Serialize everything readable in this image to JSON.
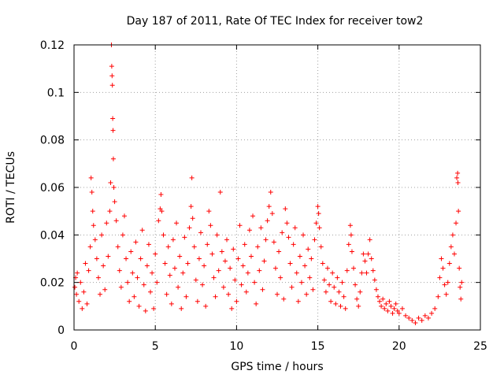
{
  "chart_data": {
    "type": "scatter",
    "title": "Day 187 of 2011, Rate Of TEC Index for receiver tow2",
    "xlabel": "GPS time / hours",
    "ylabel": "ROTI / TECUs",
    "xlim": [
      0,
      25
    ],
    "ylim": [
      0,
      0.12
    ],
    "x_ticks": [
      0,
      5,
      10,
      15,
      20,
      25
    ],
    "x_tick_labels": [
      "0",
      "5",
      "10",
      "15",
      "20",
      "25"
    ],
    "y_ticks": [
      0,
      0.02,
      0.04,
      0.06,
      0.08,
      0.1,
      0.12
    ],
    "y_tick_labels": [
      "0",
      "0.02",
      "0.04",
      "0.06",
      "0.08",
      "0.1",
      "0.12"
    ],
    "grid": true,
    "marker": "+",
    "color": "#ff0000",
    "series": [
      {
        "name": "ROTI",
        "points": [
          [
            0.05,
            0.018
          ],
          [
            0.1,
            0.022
          ],
          [
            0.15,
            0.015
          ],
          [
            0.2,
            0.024
          ],
          [
            0.3,
            0.012
          ],
          [
            0.4,
            0.02
          ],
          [
            0.5,
            0.009
          ],
          [
            0.6,
            0.016
          ],
          [
            0.7,
            0.028
          ],
          [
            0.8,
            0.011
          ],
          [
            0.9,
            0.025
          ],
          [
            1.0,
            0.035
          ],
          [
            1.05,
            0.064
          ],
          [
            1.1,
            0.058
          ],
          [
            1.15,
            0.05
          ],
          [
            1.2,
            0.044
          ],
          [
            1.3,
            0.038
          ],
          [
            1.4,
            0.03
          ],
          [
            1.5,
            0.022
          ],
          [
            1.6,
            0.015
          ],
          [
            1.7,
            0.04
          ],
          [
            1.8,
            0.027
          ],
          [
            1.9,
            0.017
          ],
          [
            2.0,
            0.045
          ],
          [
            2.1,
            0.031
          ],
          [
            2.2,
            0.05
          ],
          [
            2.25,
            0.062
          ],
          [
            2.3,
            0.12
          ],
          [
            2.32,
            0.111
          ],
          [
            2.34,
            0.107
          ],
          [
            2.36,
            0.103
          ],
          [
            2.38,
            0.089
          ],
          [
            2.4,
            0.084
          ],
          [
            2.42,
            0.072
          ],
          [
            2.45,
            0.06
          ],
          [
            2.5,
            0.054
          ],
          [
            2.6,
            0.046
          ],
          [
            2.7,
            0.035
          ],
          [
            2.8,
            0.025
          ],
          [
            2.9,
            0.018
          ],
          [
            3.0,
            0.04
          ],
          [
            3.1,
            0.048
          ],
          [
            3.2,
            0.03
          ],
          [
            3.3,
            0.02
          ],
          [
            3.4,
            0.012
          ],
          [
            3.5,
            0.033
          ],
          [
            3.6,
            0.024
          ],
          [
            3.7,
            0.014
          ],
          [
            3.8,
            0.037
          ],
          [
            3.9,
            0.022
          ],
          [
            4.0,
            0.01
          ],
          [
            4.1,
            0.03
          ],
          [
            4.2,
            0.042
          ],
          [
            4.3,
            0.019
          ],
          [
            4.4,
            0.008
          ],
          [
            4.5,
            0.027
          ],
          [
            4.6,
            0.036
          ],
          [
            4.7,
            0.016
          ],
          [
            4.8,
            0.024
          ],
          [
            4.9,
            0.009
          ],
          [
            5.0,
            0.032
          ],
          [
            5.1,
            0.02
          ],
          [
            5.2,
            0.046
          ],
          [
            5.3,
            0.051
          ],
          [
            5.35,
            0.057
          ],
          [
            5.4,
            0.05
          ],
          [
            5.5,
            0.04
          ],
          [
            5.6,
            0.028
          ],
          [
            5.7,
            0.015
          ],
          [
            5.8,
            0.035
          ],
          [
            5.9,
            0.023
          ],
          [
            6.0,
            0.011
          ],
          [
            6.1,
            0.038
          ],
          [
            6.2,
            0.026
          ],
          [
            6.3,
            0.045
          ],
          [
            6.4,
            0.018
          ],
          [
            6.5,
            0.031
          ],
          [
            6.6,
            0.009
          ],
          [
            6.7,
            0.024
          ],
          [
            6.8,
            0.039
          ],
          [
            6.9,
            0.014
          ],
          [
            7.0,
            0.028
          ],
          [
            7.1,
            0.043
          ],
          [
            7.2,
            0.052
          ],
          [
            7.25,
            0.064
          ],
          [
            7.3,
            0.047
          ],
          [
            7.4,
            0.035
          ],
          [
            7.5,
            0.021
          ],
          [
            7.6,
            0.012
          ],
          [
            7.7,
            0.03
          ],
          [
            7.8,
            0.041
          ],
          [
            7.9,
            0.019
          ],
          [
            8.0,
            0.027
          ],
          [
            8.1,
            0.01
          ],
          [
            8.2,
            0.036
          ],
          [
            8.3,
            0.05
          ],
          [
            8.4,
            0.044
          ],
          [
            8.5,
            0.032
          ],
          [
            8.6,
            0.022
          ],
          [
            8.7,
            0.014
          ],
          [
            8.8,
            0.04
          ],
          [
            8.9,
            0.025
          ],
          [
            9.0,
            0.058
          ],
          [
            9.1,
            0.033
          ],
          [
            9.2,
            0.018
          ],
          [
            9.3,
            0.029
          ],
          [
            9.4,
            0.038
          ],
          [
            9.5,
            0.015
          ],
          [
            9.6,
            0.026
          ],
          [
            9.7,
            0.009
          ],
          [
            9.8,
            0.034
          ],
          [
            9.9,
            0.021
          ],
          [
            10.0,
            0.012
          ],
          [
            10.1,
            0.03
          ],
          [
            10.2,
            0.044
          ],
          [
            10.3,
            0.019
          ],
          [
            10.4,
            0.027
          ],
          [
            10.5,
            0.036
          ],
          [
            10.6,
            0.016
          ],
          [
            10.7,
            0.024
          ],
          [
            10.8,
            0.042
          ],
          [
            10.9,
            0.031
          ],
          [
            11.0,
            0.048
          ],
          [
            11.1,
            0.02
          ],
          [
            11.2,
            0.011
          ],
          [
            11.3,
            0.035
          ],
          [
            11.4,
            0.025
          ],
          [
            11.5,
            0.043
          ],
          [
            11.6,
            0.017
          ],
          [
            11.7,
            0.029
          ],
          [
            11.8,
            0.038
          ],
          [
            11.9,
            0.046
          ],
          [
            12.0,
            0.052
          ],
          [
            12.1,
            0.058
          ],
          [
            12.2,
            0.049
          ],
          [
            12.3,
            0.037
          ],
          [
            12.4,
            0.026
          ],
          [
            12.5,
            0.015
          ],
          [
            12.6,
            0.033
          ],
          [
            12.7,
            0.022
          ],
          [
            12.8,
            0.041
          ],
          [
            12.9,
            0.013
          ],
          [
            13.0,
            0.051
          ],
          [
            13.1,
            0.045
          ],
          [
            13.2,
            0.039
          ],
          [
            13.3,
            0.028
          ],
          [
            13.4,
            0.018
          ],
          [
            13.5,
            0.036
          ],
          [
            13.6,
            0.043
          ],
          [
            13.7,
            0.024
          ],
          [
            13.8,
            0.012
          ],
          [
            13.9,
            0.031
          ],
          [
            14.0,
            0.02
          ],
          [
            14.1,
            0.04
          ],
          [
            14.2,
            0.027
          ],
          [
            14.3,
            0.015
          ],
          [
            14.4,
            0.034
          ],
          [
            14.5,
            0.022
          ],
          [
            14.6,
            0.03
          ],
          [
            14.7,
            0.017
          ],
          [
            14.8,
            0.038
          ],
          [
            14.9,
            0.045
          ],
          [
            15.0,
            0.052
          ],
          [
            15.05,
            0.049
          ],
          [
            15.1,
            0.043
          ],
          [
            15.2,
            0.035
          ],
          [
            15.3,
            0.028
          ],
          [
            15.4,
            0.021
          ],
          [
            15.5,
            0.016
          ],
          [
            15.6,
            0.026
          ],
          [
            15.7,
            0.019
          ],
          [
            15.8,
            0.012
          ],
          [
            15.9,
            0.024
          ],
          [
            16.0,
            0.018
          ],
          [
            16.1,
            0.011
          ],
          [
            16.2,
            0.022
          ],
          [
            16.3,
            0.016
          ],
          [
            16.4,
            0.01
          ],
          [
            16.5,
            0.02
          ],
          [
            16.6,
            0.014
          ],
          [
            16.7,
            0.009
          ],
          [
            16.8,
            0.025
          ],
          [
            16.9,
            0.036
          ],
          [
            17.0,
            0.044
          ],
          [
            17.05,
            0.04
          ],
          [
            17.1,
            0.033
          ],
          [
            17.2,
            0.026
          ],
          [
            17.3,
            0.019
          ],
          [
            17.4,
            0.013
          ],
          [
            17.5,
            0.01
          ],
          [
            17.6,
            0.016
          ],
          [
            17.7,
            0.024
          ],
          [
            17.8,
            0.032
          ],
          [
            17.9,
            0.029
          ],
          [
            18.0,
            0.024
          ],
          [
            18.1,
            0.032
          ],
          [
            18.2,
            0.038
          ],
          [
            18.3,
            0.03
          ],
          [
            18.4,
            0.025
          ],
          [
            18.5,
            0.021
          ],
          [
            18.6,
            0.017
          ],
          [
            18.7,
            0.014
          ],
          [
            18.8,
            0.012
          ],
          [
            18.9,
            0.01
          ],
          [
            19.0,
            0.013
          ],
          [
            19.1,
            0.009
          ],
          [
            19.2,
            0.011
          ],
          [
            19.3,
            0.008
          ],
          [
            19.4,
            0.012
          ],
          [
            19.5,
            0.01
          ],
          [
            19.6,
            0.007
          ],
          [
            19.7,
            0.009
          ],
          [
            19.8,
            0.011
          ],
          [
            19.9,
            0.008
          ],
          [
            20.0,
            0.007
          ],
          [
            20.2,
            0.009
          ],
          [
            20.4,
            0.006
          ],
          [
            20.6,
            0.005
          ],
          [
            20.8,
            0.004
          ],
          [
            21.0,
            0.003
          ],
          [
            21.2,
            0.005
          ],
          [
            21.4,
            0.004
          ],
          [
            21.6,
            0.006
          ],
          [
            21.8,
            0.005
          ],
          [
            22.0,
            0.007
          ],
          [
            22.2,
            0.009
          ],
          [
            22.4,
            0.014
          ],
          [
            22.5,
            0.022
          ],
          [
            22.6,
            0.03
          ],
          [
            22.7,
            0.026
          ],
          [
            22.8,
            0.019
          ],
          [
            22.9,
            0.015
          ],
          [
            23.0,
            0.02
          ],
          [
            23.1,
            0.028
          ],
          [
            23.2,
            0.035
          ],
          [
            23.3,
            0.04
          ],
          [
            23.4,
            0.032
          ],
          [
            23.5,
            0.045
          ],
          [
            23.55,
            0.064
          ],
          [
            23.6,
            0.066
          ],
          [
            23.62,
            0.062
          ],
          [
            23.65,
            0.05
          ],
          [
            23.7,
            0.026
          ],
          [
            23.75,
            0.018
          ],
          [
            23.8,
            0.013
          ],
          [
            23.85,
            0.02
          ]
        ]
      }
    ]
  }
}
